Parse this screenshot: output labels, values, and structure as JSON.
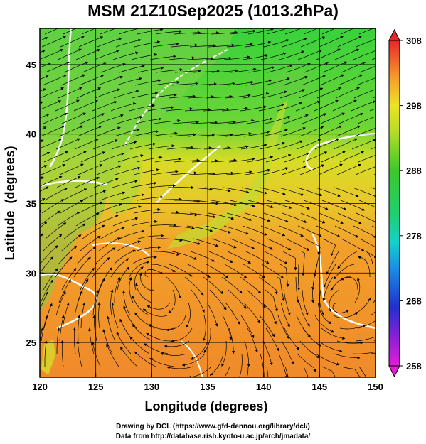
{
  "title": "MSM 21Z10Sep2025 (1013.2hPa)",
  "axes": {
    "xlabel": "Longitude (degrees)",
    "ylabel": "Latitude  (degrees)",
    "xlim": [
      120,
      150
    ],
    "ylim": [
      22.5,
      47.6
    ],
    "xticks": [
      "120",
      "125",
      "130",
      "135",
      "140",
      "145",
      "150"
    ],
    "yticks": [
      "25",
      "30",
      "35",
      "40",
      "45"
    ]
  },
  "colorbar": {
    "range": [
      258,
      308
    ],
    "ticks": [
      "258",
      "268",
      "278",
      "288",
      "298",
      "308"
    ],
    "colors": [
      "#e21dd8",
      "#6a1fd2",
      "#1a33cc",
      "#168fe0",
      "#14d6c9",
      "#1ed070",
      "#22c62a",
      "#86d62a",
      "#e6e624",
      "#f6b32a",
      "#f57b2a",
      "#e8262a"
    ]
  },
  "field_colors": {
    "north": "#3ad63a",
    "mid": "#c8dc2a",
    "south": "#f0902a",
    "land": "#9ad65a"
  },
  "footer": {
    "line1": "Drawing by DCL (https://www.gfd-dennou.org/library/dcl/)",
    "line2": "Data from http://database.rish.kyoto-u.ac.jp/arch/jmadata/"
  }
}
